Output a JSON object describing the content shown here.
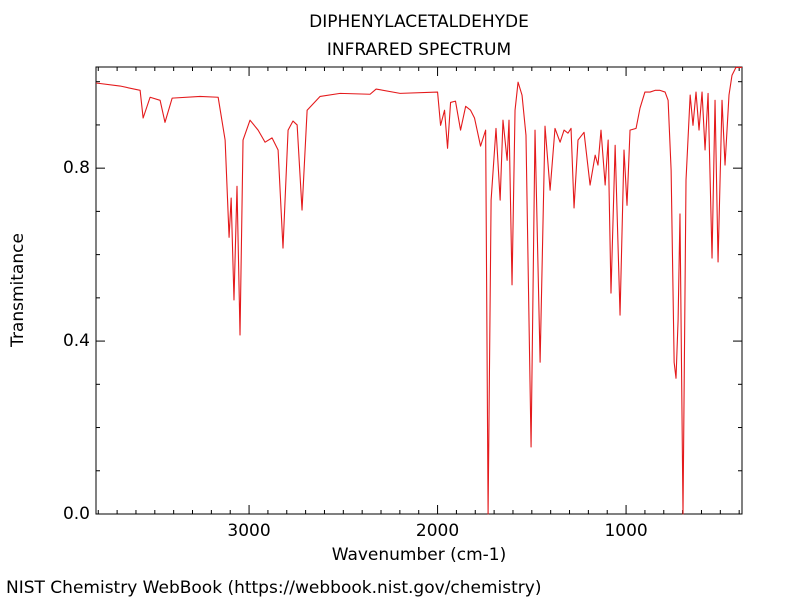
{
  "chart_data": {
    "type": "line",
    "title": "DIPHENYLACETALDEHYDE",
    "subtitle": "INFRARED SPECTRUM",
    "x_label": "Wavenumber (cm-1)",
    "y_label": "Transmitance",
    "color": "#e41a1c",
    "xlim": [
      3812,
      385
    ],
    "ylim": [
      0,
      1.034
    ],
    "xticks": [
      3000,
      2000,
      1000
    ],
    "yticks": [
      {
        "value": 0,
        "label": "0.0"
      },
      0.4,
      0.8
    ],
    "xminor": [
      3800,
      3700,
      3600,
      3500,
      3400,
      3300,
      3200,
      3100,
      2900,
      2800,
      2700,
      2600,
      2500,
      2400,
      2300,
      2200,
      2100,
      1900,
      1800,
      1700,
      1600,
      1500,
      1400,
      1300,
      1200,
      1100,
      900,
      800,
      700,
      600,
      500,
      400
    ],
    "yminor": [
      0.1,
      0.2,
      0.3,
      0.5,
      0.6,
      0.7,
      0.9,
      1.0
    ],
    "x": [
      3812,
      3684,
      3578,
      3562,
      3525,
      3472,
      3446,
      3408,
      3260,
      3164,
      3127,
      3106,
      3095,
      3080,
      3064,
      3048,
      3032,
      2995,
      2952,
      2915,
      2878,
      2846,
      2820,
      2793,
      2767,
      2745,
      2719,
      2692,
      2623,
      2517,
      2358,
      2326,
      2199,
      2000,
      1984,
      1963,
      1947,
      1931,
      1905,
      1878,
      1851,
      1825,
      1804,
      1772,
      1745,
      1732,
      1716,
      1690,
      1668,
      1653,
      1631,
      1621,
      1605,
      1589,
      1573,
      1552,
      1531,
      1504,
      1483,
      1456,
      1430,
      1403,
      1377,
      1350,
      1329,
      1308,
      1292,
      1276,
      1255,
      1223,
      1191,
      1164,
      1149,
      1133,
      1111,
      1095,
      1080,
      1058,
      1032,
      1011,
      995,
      979,
      947,
      926,
      900,
      873,
      846,
      820,
      793,
      777,
      761,
      745,
      735,
      724,
      714,
      698,
      682,
      660,
      645,
      629,
      613,
      597,
      581,
      565,
      544,
      528,
      512,
      491,
      475,
      454,
      438,
      417,
      385
    ],
    "values": [
      0.997,
      0.99,
      0.98,
      0.916,
      0.964,
      0.957,
      0.906,
      0.962,
      0.966,
      0.964,
      0.865,
      0.64,
      0.731,
      0.495,
      0.758,
      0.414,
      0.865,
      0.911,
      0.888,
      0.86,
      0.87,
      0.842,
      0.615,
      0.888,
      0.909,
      0.9,
      0.703,
      0.934,
      0.966,
      0.973,
      0.971,
      0.983,
      0.973,
      0.976,
      0.899,
      0.934,
      0.846,
      0.952,
      0.955,
      0.888,
      0.943,
      0.934,
      0.916,
      0.851,
      0.888,
      0.0,
      0.726,
      0.892,
      0.726,
      0.911,
      0.818,
      0.911,
      0.53,
      0.934,
      0.999,
      0.969,
      0.876,
      0.155,
      0.888,
      0.351,
      0.897,
      0.749,
      0.892,
      0.86,
      0.888,
      0.881,
      0.892,
      0.708,
      0.865,
      0.883,
      0.761,
      0.83,
      0.807,
      0.888,
      0.761,
      0.865,
      0.511,
      0.853,
      0.46,
      0.842,
      0.714,
      0.888,
      0.892,
      0.939,
      0.976,
      0.976,
      0.98,
      0.98,
      0.976,
      0.957,
      0.795,
      0.351,
      0.314,
      0.449,
      0.694,
      0.0,
      0.772,
      0.969,
      0.899,
      0.976,
      0.888,
      0.976,
      0.842,
      0.973,
      0.592,
      0.957,
      0.583,
      0.957,
      0.807,
      0.969,
      1.015,
      1.033,
      1.033
    ]
  },
  "footer": "NIST Chemistry WebBook (https://webbook.nist.gov/chemistry)"
}
